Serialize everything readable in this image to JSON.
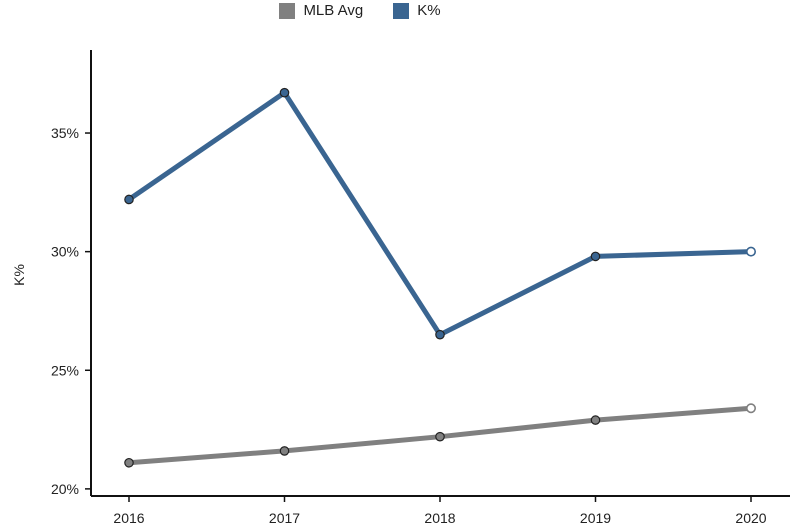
{
  "chart_data": {
    "type": "line",
    "title": "",
    "xlabel": "",
    "ylabel": "K%",
    "categories": [
      "2016",
      "2017",
      "2018",
      "2019",
      "2020"
    ],
    "ylim": [
      19.7,
      38.5
    ],
    "yticks": [
      20,
      25,
      30,
      35
    ],
    "ytick_labels": [
      "20%",
      "25%",
      "30%",
      "35%"
    ],
    "grid": false,
    "legend_position": "top-center",
    "series": [
      {
        "name": "MLB Avg",
        "color": "#808080",
        "values": [
          21.1,
          21.6,
          22.2,
          22.9,
          23.4
        ]
      },
      {
        "name": "K%",
        "color": "#3a6591",
        "values": [
          32.2,
          36.7,
          26.5,
          29.8,
          30.0
        ]
      }
    ],
    "last_point_hollow": true
  }
}
